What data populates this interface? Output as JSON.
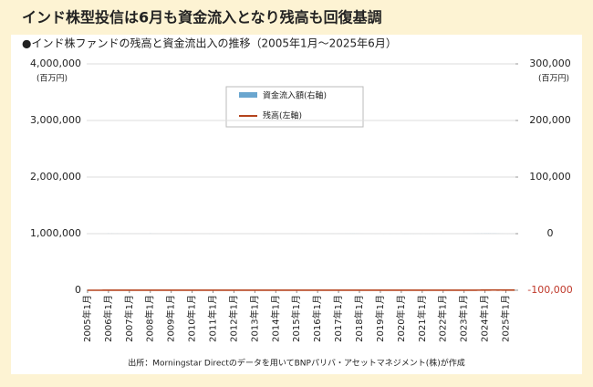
{
  "chart_data": {
    "type": "bar_line",
    "title": "インド株型投信は6月も資金流入となり残高も回復基調",
    "subtitle": "●インド株ファンドの残高と資金流出入の推移（2005年1月～2025年6月）",
    "source": "出所：Morningstar Directのデータを用いてBNPパリバ・アセットマネジメント(株)が作成",
    "ylabel": "(百万円)",
    "y2label": "(百万円)",
    "categories": [
      "2005年1月",
      null,
      null,
      null,
      null,
      null,
      null,
      null,
      null,
      null,
      null,
      null,
      "2006年1月",
      null,
      null,
      null,
      null,
      null,
      null,
      null,
      null,
      null,
      null,
      null,
      "2007年1月",
      null,
      null,
      null,
      null,
      null,
      null,
      null,
      null,
      null,
      null,
      null,
      "2008年1月",
      null,
      null,
      null,
      null,
      null,
      null,
      null,
      null,
      null,
      null,
      null,
      "2009年1月",
      null,
      null,
      null,
      null,
      null,
      null,
      null,
      null,
      null,
      null,
      null,
      "2010年1月",
      null,
      null,
      null,
      null,
      null,
      null,
      null,
      null,
      null,
      null,
      null,
      "2011年1月",
      null,
      null,
      null,
      null,
      null,
      null,
      null,
      null,
      null,
      null,
      null,
      "2012年1月",
      null,
      null,
      null,
      null,
      null,
      null,
      null,
      null,
      null,
      null,
      null,
      "2013年1月",
      null,
      null,
      null,
      null,
      null,
      null,
      null,
      null,
      null,
      null,
      null,
      "2014年1月",
      null,
      null,
      null,
      null,
      null,
      null,
      null,
      null,
      null,
      null,
      null,
      "2015年1月",
      null,
      null,
      null,
      null,
      null,
      null,
      null,
      null,
      null,
      null,
      null,
      "2016年1月",
      null,
      null,
      null,
      null,
      null,
      null,
      null,
      null,
      null,
      null,
      null,
      "2017年1月",
      null,
      null,
      null,
      null,
      null,
      null,
      null,
      null,
      null,
      null,
      null,
      "2018年1月",
      null,
      null,
      null,
      null,
      null,
      null,
      null,
      null,
      null,
      null,
      null,
      "2019年1月",
      null,
      null,
      null,
      null,
      null,
      null,
      null,
      null,
      null,
      null,
      null,
      "2020年1月",
      null,
      null,
      null,
      null,
      null,
      null,
      null,
      null,
      null,
      null,
      null,
      "2021年1月",
      null,
      null,
      null,
      null,
      null,
      null,
      null,
      null,
      null,
      null,
      null,
      "2022年1月",
      null,
      null,
      null,
      null,
      null,
      null,
      null,
      null,
      null,
      null,
      null,
      "2023年1月",
      null,
      null,
      null,
      null,
      null,
      null,
      null,
      null,
      null,
      null,
      null,
      "2024年1月",
      null,
      null,
      null,
      null,
      null,
      null,
      null,
      null,
      null,
      null,
      null,
      "2025年1月",
      null,
      null,
      null,
      null,
      null
    ],
    "series": [
      {
        "name": "資金流入額(右軸)",
        "type": "bar",
        "axis": "y2",
        "color": "#6aa6cf",
        "values": [
          5,
          10,
          8,
          12,
          6,
          10,
          15,
          10,
          8,
          12,
          10,
          15,
          115,
          30,
          110,
          60,
          20,
          80,
          15,
          10,
          20,
          15,
          10,
          15,
          10,
          20,
          15,
          30,
          25,
          20,
          25,
          15,
          40,
          30,
          20,
          35,
          145,
          40,
          30,
          20,
          15,
          10,
          5,
          -5,
          -10,
          -5,
          5,
          -10,
          -5,
          -3,
          2,
          5,
          8,
          10,
          15,
          10,
          20,
          25,
          15,
          20,
          15,
          25,
          20,
          10,
          5,
          -5,
          -10,
          -15,
          -10,
          -5,
          -20,
          -15,
          -10,
          -15,
          -5,
          -10,
          -15,
          -20,
          -10,
          -5,
          -10,
          -15,
          -10,
          -5,
          -5,
          -10,
          -5,
          -15,
          -10,
          -5,
          -8,
          -10,
          -5,
          -12,
          -8,
          -5,
          5,
          10,
          -5,
          -10,
          -15,
          -20,
          -10,
          -5,
          -8,
          -12,
          -6,
          -5,
          5,
          8,
          10,
          5,
          -5,
          -10,
          5,
          8,
          10,
          12,
          5,
          8,
          15,
          20,
          10,
          25,
          15,
          20,
          10,
          8,
          12,
          15,
          10,
          8,
          -5,
          -10,
          5,
          8,
          10,
          5,
          8,
          12,
          15,
          20,
          10,
          15,
          20,
          25,
          30,
          35,
          40,
          50,
          60,
          70,
          80,
          75,
          55,
          60,
          40,
          30,
          20,
          10,
          5,
          -5,
          -10,
          -15,
          -10,
          -20,
          -15,
          -10,
          -15,
          -10,
          -20,
          -15,
          -10,
          -20,
          -25,
          -15,
          -10,
          -20,
          -15,
          -10,
          -20,
          -30,
          -40,
          -35,
          -30,
          -20,
          -15,
          -25,
          -20,
          -15,
          -10,
          -25,
          -20,
          -15,
          -25,
          -30,
          -20,
          -15,
          -25,
          -20,
          -15,
          -10,
          -15,
          -20,
          -10,
          -15,
          -5,
          -10,
          -5,
          -8,
          -5,
          5,
          10,
          8,
          15,
          20,
          25,
          35,
          50,
          60,
          30,
          45,
          70,
          90,
          120,
          80,
          160,
          130,
          190,
          150,
          200,
          170,
          120,
          180,
          150,
          100,
          90,
          40,
          60,
          30,
          10,
          -20,
          20,
          -30,
          25,
          15
        ]
      },
      {
        "name": "残高(左軸)",
        "type": "line",
        "axis": "y",
        "color": "#b5441e",
        "values": [
          0,
          20,
          50,
          80,
          120,
          150,
          180,
          210,
          240,
          260,
          280,
          300,
          320,
          330,
          350,
          360,
          370,
          380,
          400,
          420,
          430,
          450,
          470,
          480,
          500,
          530,
          560,
          600,
          650,
          700,
          750,
          800,
          850,
          900,
          1000,
          1100,
          1350,
          1200,
          1150,
          1200,
          1050,
          950,
          900,
          800,
          650,
          450,
          420,
          430,
          420,
          400,
          430,
          480,
          550,
          600,
          620,
          700,
          750,
          850,
          900,
          950,
          900,
          950,
          970,
          1000,
          950,
          950,
          980,
          950,
          920,
          900,
          850,
          800,
          750,
          700,
          650,
          600,
          580,
          560,
          550,
          520,
          500,
          520,
          550,
          550,
          520,
          580,
          600,
          550,
          500,
          480,
          500,
          520,
          500,
          480,
          500,
          520,
          550,
          520,
          500,
          450,
          420,
          380,
          350,
          360,
          380,
          400,
          420,
          430,
          400,
          420,
          450,
          500,
          520,
          550,
          580,
          600,
          620,
          650,
          640,
          600,
          620,
          650,
          680,
          700,
          680,
          650,
          620,
          600,
          580,
          570,
          580,
          590,
          560,
          540,
          560,
          570,
          590,
          600,
          620,
          650,
          680,
          700,
          720,
          750,
          780,
          800,
          820,
          850,
          880,
          900,
          950,
          1000,
          1050,
          1100,
          1200,
          1300,
          1400,
          1350,
          1300,
          1250,
          1200,
          1150,
          1100,
          1150,
          1100,
          1050,
          1100,
          1150,
          1150,
          1180,
          1200,
          1150,
          1180,
          1200,
          1170,
          1150,
          1200,
          1200,
          1220,
          1230,
          1200,
          1100,
          650,
          700,
          750,
          800,
          780,
          820,
          850,
          830,
          880,
          900,
          880,
          860,
          850,
          880,
          900,
          920,
          900,
          880,
          860,
          850,
          880,
          900,
          880,
          850,
          870,
          900,
          880,
          860,
          880,
          900,
          920,
          910,
          950,
          1000,
          950,
          980,
          1050,
          1100,
          1200,
          1400,
          1500,
          1700,
          1900,
          2100,
          2300,
          2600,
          2900,
          3200,
          3500,
          3750,
          3850,
          3800,
          3900,
          3700,
          3750,
          3800,
          3600,
          3200,
          3300,
          3100,
          3200,
          3400,
          3500,
          3600
        ]
      }
    ],
    "ylim": [
      0,
      4000000
    ],
    "yticks": [
      0,
      {
        "value": 1000000,
        "label": "1,000,000"
      },
      {
        "value": 2000000,
        "label": "2,000,000"
      },
      {
        "value": 3000000,
        "label": "3,000,000"
      },
      {
        "value": 4000000,
        "label": "4,000,000"
      }
    ],
    "y2lim": [
      -100000,
      300000
    ],
    "y2ticks": [
      {
        "value": -100000,
        "label": "-100,000"
      },
      0,
      {
        "value": 100000,
        "label": "100,000"
      },
      {
        "value": 200000,
        "label": "200,000"
      },
      {
        "value": 300000,
        "label": "300,000"
      }
    ],
    "grid": true
  }
}
